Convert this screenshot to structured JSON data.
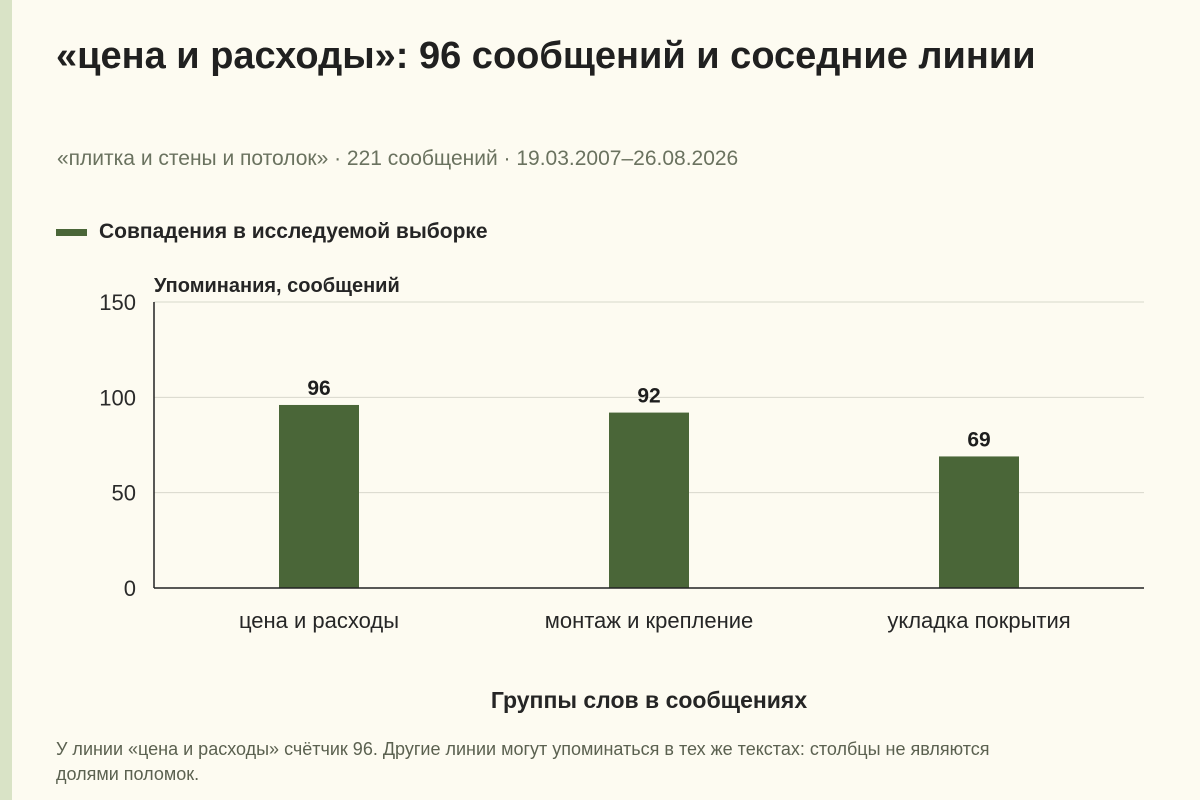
{
  "page": {
    "title": "«цена и расходы»: 96 сообщений и соседние линии",
    "subtitle": "«плитка и стены и потолок» · 221 сообщений · 19.03.2007–26.08.2026",
    "note": "У линии «цена и расходы» счётчик 96. Другие линии могут упоминаться в тех же текстах: столбцы не являются долями поломок."
  },
  "colors": {
    "background": "#fdfbf1",
    "bar": "#4a6638",
    "accent_strip": "#d9e3c6",
    "gridline": "#d8d8cc",
    "axis": "#222222",
    "muted_text": "#6a725f"
  },
  "chart_data": {
    "type": "bar",
    "categories": [
      "цена и расходы",
      "монтаж и крепление",
      "укладка покрытия"
    ],
    "series": [
      {
        "name": "Совпадения в исследуемой выборке",
        "values": [
          96,
          92,
          69
        ]
      }
    ],
    "data_labels": [
      "96",
      "92",
      "69"
    ],
    "xlabel": "Группы слов в сообщениях",
    "ylabel": "Упоминания, сообщений",
    "ylim": [
      0,
      150
    ],
    "yticks": [
      0,
      50,
      100,
      150
    ],
    "grid": true,
    "legend": "top-left"
  }
}
